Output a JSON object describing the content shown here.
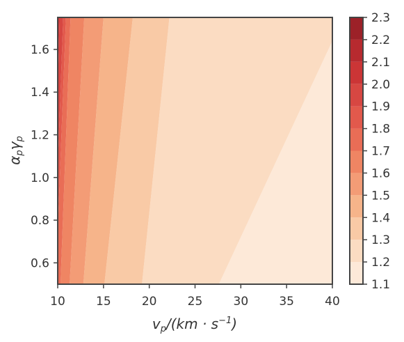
{
  "chart_data": {
    "type": "contour",
    "title": "",
    "xlabel": "v_p/(km·s^-1)",
    "ylabel": "α_p γ_p",
    "xlim": [
      10,
      40
    ],
    "ylim": [
      0.5,
      1.75
    ],
    "x_ticks": [
      "10",
      "15",
      "20",
      "25",
      "30",
      "35",
      "40"
    ],
    "y_ticks": [
      "0.6",
      "0.8",
      "1.0",
      "1.2",
      "1.4",
      "1.6"
    ],
    "levels": [
      1.1,
      1.2,
      1.3,
      1.4,
      1.5,
      1.6,
      1.7,
      1.8,
      1.9,
      2.0,
      2.1,
      2.2,
      2.3
    ],
    "colorbar_ticks": [
      "1.1",
      "1.2",
      "1.3",
      "1.4",
      "1.5",
      "1.6",
      "1.7",
      "1.8",
      "1.9",
      "2.0",
      "2.1",
      "2.2",
      "2.3"
    ],
    "level_colors": [
      "#fde9d8",
      "#fbdcc2",
      "#f9caa6",
      "#f6b48a",
      "#f39c76",
      "#ef8563",
      "#e96d56",
      "#e2594c",
      "#d74742",
      "#cb3536",
      "#b72a2f",
      "#9c2128",
      "#7a1d22"
    ],
    "contours": [
      {
        "level": 1.2,
        "points": [
          [
            27.6,
            0.5
          ],
          [
            40.0,
            1.64
          ]
        ]
      },
      {
        "level": 1.3,
        "points": [
          [
            19.2,
            0.5
          ],
          [
            22.2,
            1.75
          ]
        ]
      },
      {
        "level": 1.4,
        "points": [
          [
            15.1,
            0.5
          ],
          [
            18.2,
            1.75
          ]
        ]
      },
      {
        "level": 1.5,
        "points": [
          [
            12.8,
            0.5
          ],
          [
            15.0,
            1.75
          ]
        ]
      },
      {
        "level": 1.6,
        "points": [
          [
            11.3,
            0.5
          ],
          [
            12.9,
            1.75
          ]
        ]
      },
      {
        "level": 1.7,
        "points": [
          [
            10.3,
            0.5
          ],
          [
            11.4,
            1.75
          ]
        ]
      },
      {
        "level": 1.8,
        "points": [
          [
            10.0,
            0.75
          ],
          [
            10.9,
            1.75
          ]
        ]
      },
      {
        "level": 1.9,
        "points": [
          [
            10.0,
            1.05
          ],
          [
            10.6,
            1.75
          ]
        ]
      },
      {
        "level": 2.0,
        "points": [
          [
            10.0,
            1.4
          ],
          [
            10.2,
            1.75
          ]
        ]
      }
    ]
  }
}
